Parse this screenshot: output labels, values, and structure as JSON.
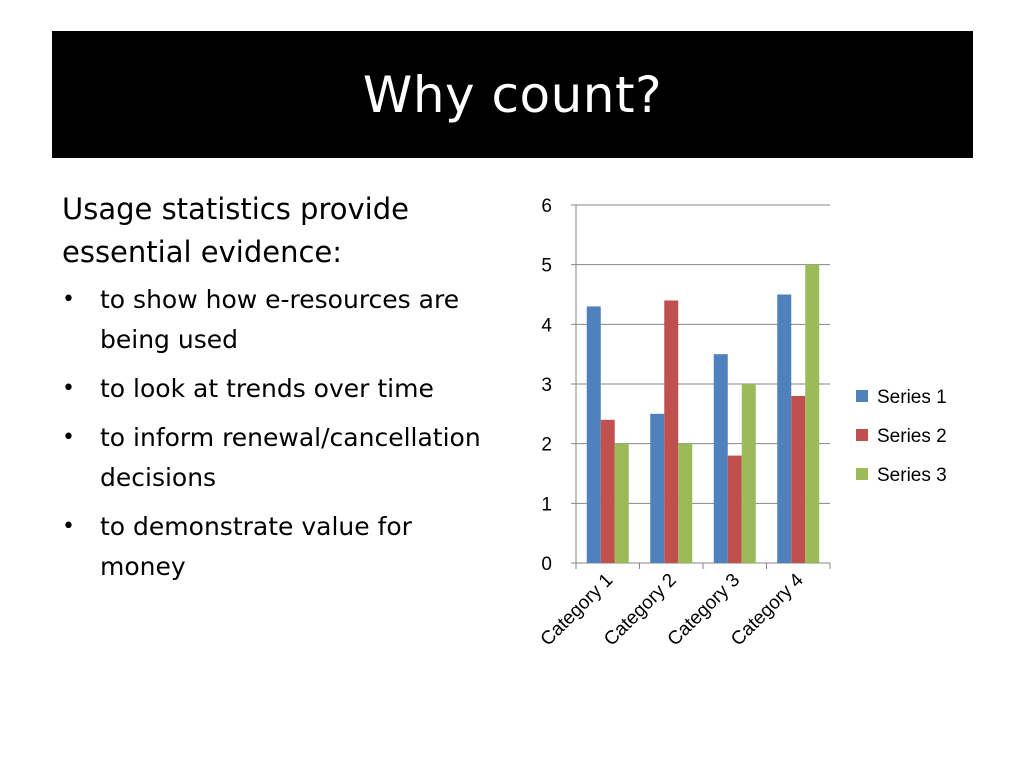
{
  "slide": {
    "title": "Why count?",
    "intro": "Usage statistics provide essential evidence:",
    "bullets": [
      "to show how e-resources are  being used",
      "to look at trends over time",
      "to inform renewal/cancellation decisions",
      "to demonstrate value for money"
    ],
    "bullet_glyph": "•"
  },
  "chart_data": {
    "type": "bar",
    "categories": [
      "Category 1",
      "Category 2",
      "Category 3",
      "Category 4"
    ],
    "series": [
      {
        "name": "Series 1",
        "values": [
          4.3,
          2.5,
          3.5,
          4.5
        ],
        "color": "#4f81bd"
      },
      {
        "name": "Series 2",
        "values": [
          2.4,
          4.4,
          1.8,
          2.8
        ],
        "color": "#c0504d"
      },
      {
        "name": "Series 3",
        "values": [
          2,
          2,
          3,
          5
        ],
        "color": "#9bbb59"
      }
    ],
    "ylim": [
      0,
      6
    ],
    "yticks": [
      0,
      1,
      2,
      3,
      4,
      5,
      6
    ],
    "title": "",
    "xlabel": "",
    "ylabel": "",
    "grid": true,
    "legend": "right"
  }
}
